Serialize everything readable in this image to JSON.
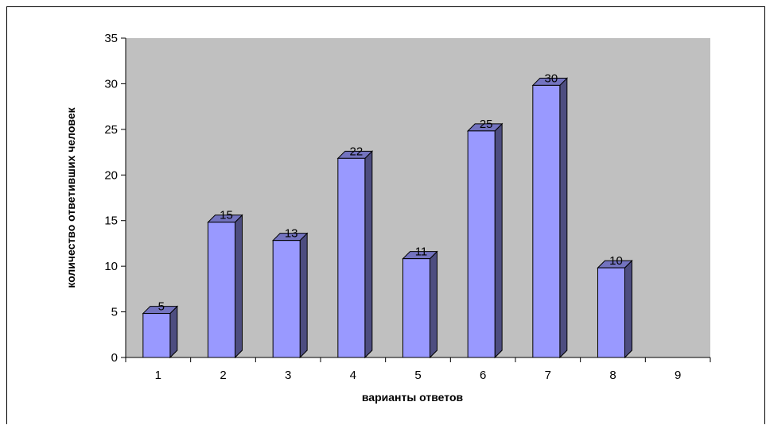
{
  "chart_data": {
    "type": "bar",
    "categories": [
      "1",
      "2",
      "3",
      "4",
      "5",
      "6",
      "7",
      "8",
      "9"
    ],
    "values": [
      5,
      15,
      13,
      22,
      11,
      25,
      30,
      10,
      null
    ],
    "data_labels": [
      "5",
      "15",
      "13",
      "22",
      "11",
      "25",
      "30",
      "10",
      ""
    ],
    "xlabel": "варианты ответов",
    "ylabel": "количество ответивших человек",
    "ylim": [
      0,
      35
    ],
    "yticks": [
      0,
      5,
      10,
      15,
      20,
      25,
      30,
      35
    ],
    "grid": false,
    "legend": "none",
    "colors": {
      "plot_background": "#c0c0c0",
      "bar_front": "#9999ff",
      "bar_side": "#4d4d80",
      "bar_top": "#7373bf",
      "outline": "#000000"
    }
  }
}
